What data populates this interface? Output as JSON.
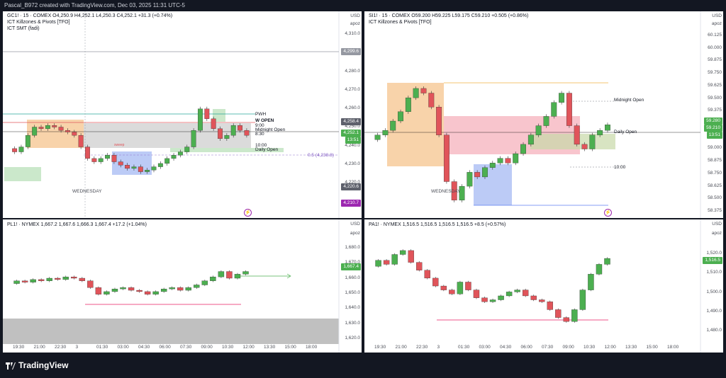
{
  "header": {
    "caption": "Pascal_B972 created with TradingView.com, Dec 03, 2025 11:31 UTC-5"
  },
  "brand": {
    "name": "TradingView"
  },
  "colors": {
    "up": "#4caf50",
    "down": "#e0545a",
    "line": "#787b86"
  },
  "common": {
    "currency": "USD",
    "scale_label": "apoz"
  },
  "panels": {
    "gc": {
      "title": "GC1! · 15 · COMEX  O4,250.9  H4,252.1  L4,250.3  C4,252.1  +31.3 (+0.74%)",
      "indicator1": "ICT Killzones & Pivots [TFO]",
      "indicator2": "ICT SMT (fadi)",
      "price_ticks": [
        "4,310.0",
        "4,290.0",
        "4,280.0",
        "4,270.0",
        "4,260.0",
        "4,250.0",
        "4,240.0",
        "4,230.0",
        "4,220.0"
      ],
      "tag_pwh": "4,299.6",
      "tag_current": "4,258.4",
      "tag_last": "4,252.1",
      "tag_timer": "13:51",
      "tag_low1": "4,220.6",
      "tag_low2": "4,210.7",
      "labels": {
        "pwh": "PWH",
        "wopen": "W OPEN",
        "t900": "9:00",
        "midnight": "Midnight Open",
        "t830": "8:30",
        "t1000": "10:00",
        "daily": "Daily Open",
        "fib": "0.5 (4,238.8)",
        "day": "WEDNESDAY",
        "sweep": "sweep"
      }
    },
    "si": {
      "title": "SI1! · 15 · COMEX  O59.200  H59.225  L59.175  C59.210  +0.505 (+0.86%)",
      "indicator1": "ICT Killzones & Pivots [TFO]",
      "price_ticks": [
        "60.125",
        "60.000",
        "59.875",
        "59.750",
        "59.625",
        "59.500",
        "59.375",
        "59.250",
        "59.125",
        "59.000",
        "58.875",
        "58.750",
        "58.625",
        "58.500",
        "58.375"
      ],
      "tag_current": "59.280",
      "tag_last": "59.210",
      "tag_timer": "13:51",
      "labels": {
        "midnight": "Midnight Open",
        "daily": "Daily Open",
        "t1000": "10:00",
        "day": "WEDNESDAY"
      }
    },
    "pl": {
      "title": "PL1! · NYMEX  1,667.2  1,667.6  1,666.3  1,667.4  +17.2 (+1.04%)",
      "price_ticks": [
        "1,680.0",
        "1,670.0",
        "1,660.0",
        "1,650.0",
        "1,640.0",
        "1,630.0",
        "1,620.0"
      ],
      "tag_last": "1,667.4"
    },
    "pa": {
      "title": "PA1! · NYMEX  1,516.5  1,516.5  1,516.5  1,516.5  +8.5 (+0.57%)",
      "price_ticks": [
        "1,520.0",
        "1,510.0",
        "1,500.0",
        "1,490.0",
        "1,480.0"
      ],
      "tag_last": "1,516.5"
    }
  },
  "time_axis_left": [
    "19:30",
    "21:00",
    "22:30",
    "3",
    "01:30",
    "03:00",
    "04:30",
    "06:00",
    "07:30",
    "09:00",
    "10:30",
    "12:00",
    "13:30",
    "15:00",
    "18:00"
  ],
  "time_axis_right": [
    "19:30",
    "21:00",
    "22:30",
    "3",
    "01:30",
    "03:00",
    "04:30",
    "06:00",
    "07:30",
    "09:00",
    "10:30",
    "12:00",
    "13:30",
    "15:00",
    "18:00"
  ],
  "chart_data": [
    {
      "type": "line",
      "title": "GC1! · 15 · COMEX",
      "ylim": [
        4205,
        4315
      ],
      "series": [
        {
          "name": "GC1!",
          "values": [
            4244,
            4242,
            4245,
            4252,
            4257,
            4256,
            4258,
            4257,
            4255,
            4254,
            4252,
            4245,
            4238,
            4236,
            4238,
            4240,
            4236,
            4234,
            4232,
            4233,
            4230,
            4231,
            4233,
            4235,
            4238,
            4240,
            4242,
            4245,
            4255,
            4268,
            4262,
            4256,
            4250,
            4252,
            4258,
            4255,
            4252
          ]
        }
      ]
    },
    {
      "type": "line",
      "title": "SI1! · 15 · COMEX",
      "ylim": [
        58.3,
        60.2
      ],
      "series": [
        {
          "name": "SI1!",
          "values": [
            59.05,
            59.1,
            59.15,
            59.25,
            59.35,
            59.5,
            59.6,
            59.55,
            59.4,
            59.1,
            58.6,
            58.4,
            58.55,
            58.7,
            58.65,
            58.75,
            58.8,
            58.85,
            58.8,
            58.9,
            59.0,
            59.1,
            59.2,
            59.3,
            59.45,
            59.55,
            59.2,
            59.0,
            58.95,
            59.1,
            59.15,
            59.21
          ]
        }
      ]
    },
    {
      "type": "line",
      "title": "PL1! · NYMEX",
      "ylim": [
        1615,
        1690
      ],
      "series": [
        {
          "name": "PL1!",
          "values": [
            1658,
            1660,
            1659,
            1661,
            1660,
            1662,
            1661,
            1663,
            1662,
            1660,
            1655,
            1650,
            1652,
            1654,
            1655,
            1653,
            1652,
            1650,
            1652,
            1654,
            1655,
            1653,
            1655,
            1657,
            1660,
            1663,
            1667,
            1662,
            1665,
            1667
          ]
        }
      ]
    },
    {
      "type": "line",
      "title": "PA1! · NYMEX",
      "ylim": [
        1474,
        1525
      ],
      "series": [
        {
          "name": "PA1!",
          "values": [
            1512,
            1515,
            1513,
            1518,
            1520,
            1514,
            1510,
            1506,
            1502,
            1500,
            1498,
            1504,
            1500,
            1496,
            1494,
            1495,
            1497,
            1499,
            1500,
            1497,
            1495,
            1494,
            1490,
            1486,
            1484,
            1490,
            1500,
            1508,
            1513,
            1516
          ]
        }
      ]
    }
  ]
}
